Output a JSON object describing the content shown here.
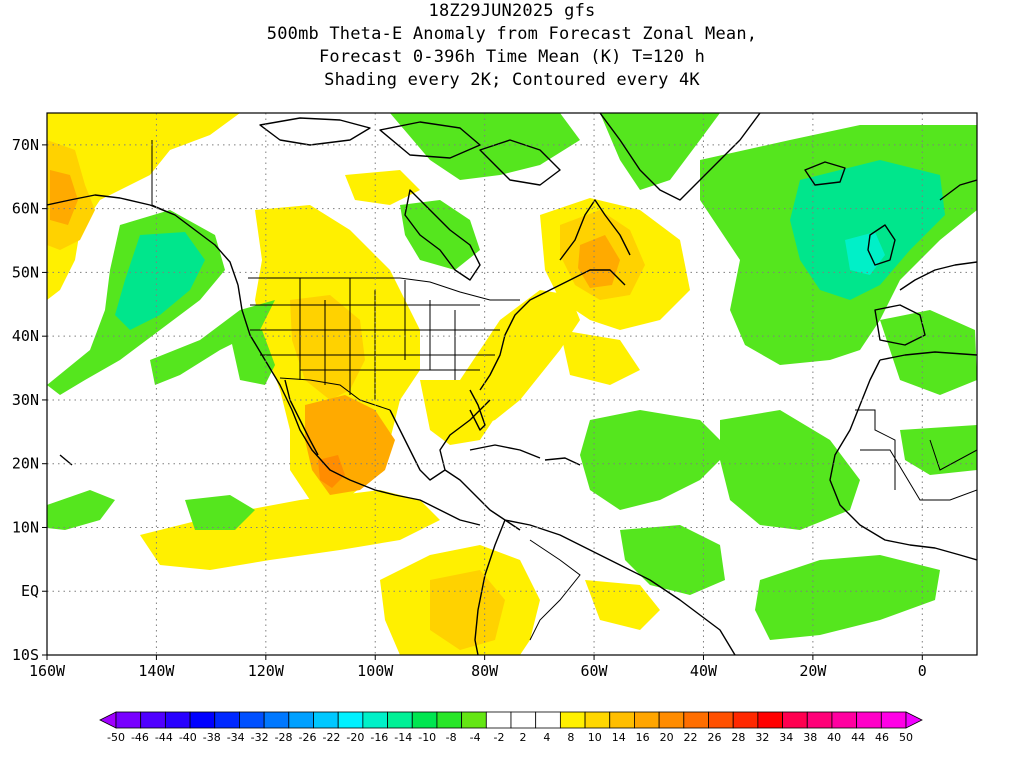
{
  "title": {
    "lines": [
      "18Z29JUN2025 gfs",
      "500mb Theta-E Anomaly from Forecast Zonal Mean,",
      "Forecast 0-396h Time Mean (K) T=120 h",
      "Shading every 2K; Contoured every 4K"
    ]
  },
  "map": {
    "lon_range": [
      -160,
      10
    ],
    "lat_range": [
      -10,
      75
    ],
    "x_ticks": [
      {
        "lon": -160,
        "label": "160W"
      },
      {
        "lon": -140,
        "label": "140W"
      },
      {
        "lon": -120,
        "label": "120W"
      },
      {
        "lon": -100,
        "label": "100W"
      },
      {
        "lon": -80,
        "label": "80W"
      },
      {
        "lon": -60,
        "label": "60W"
      },
      {
        "lon": -40,
        "label": "40W"
      },
      {
        "lon": -20,
        "label": "20W"
      },
      {
        "lon": 0,
        "label": "0"
      }
    ],
    "y_ticks": [
      {
        "lat": 70,
        "label": "70N"
      },
      {
        "lat": 60,
        "label": "60N"
      },
      {
        "lat": 50,
        "label": "50N"
      },
      {
        "lat": 40,
        "label": "40N"
      },
      {
        "lat": 30,
        "label": "30N"
      },
      {
        "lat": 20,
        "label": "20N"
      },
      {
        "lat": 10,
        "label": "10N"
      },
      {
        "lat": 0,
        "label": "EQ"
      },
      {
        "lat": -10,
        "label": "10S"
      }
    ],
    "grid": "dotted",
    "anomaly_colors": {
      "minus_10": "#00e68c",
      "minus_8": "#55e61e",
      "plus_4": "#fff000",
      "plus_8": "#ffd200",
      "plus_10": "#ffaa00",
      "plus_14": "#ff8c00"
    }
  },
  "colorbar": {
    "labels": [
      "-50",
      "-46",
      "-44",
      "-40",
      "-38",
      "-34",
      "-32",
      "-28",
      "-26",
      "-22",
      "-20",
      "-16",
      "-14",
      "-10",
      "-8",
      "-4",
      "-2",
      "2",
      "4",
      "8",
      "10",
      "14",
      "16",
      "20",
      "22",
      "26",
      "28",
      "32",
      "34",
      "38",
      "40",
      "44",
      "46",
      "50"
    ],
    "colors": [
      "#a000ff",
      "#7800ff",
      "#5000ff",
      "#2800ff",
      "#0000ff",
      "#0028ff",
      "#0050ff",
      "#0078ff",
      "#00a0ff",
      "#00c8ff",
      "#00f0ff",
      "#00f0c8",
      "#00f096",
      "#00e650",
      "#28e628",
      "#64e614",
      "#ffffff",
      "#ffffff",
      "#ffffff",
      "#fff000",
      "#ffd700",
      "#ffbe00",
      "#ffa500",
      "#ff8c00",
      "#ff6e00",
      "#ff5000",
      "#ff2800",
      "#ff0000",
      "#ff0050",
      "#ff0078",
      "#ff00a0",
      "#ff00c8",
      "#ff00e6",
      "#f000ff"
    ]
  }
}
